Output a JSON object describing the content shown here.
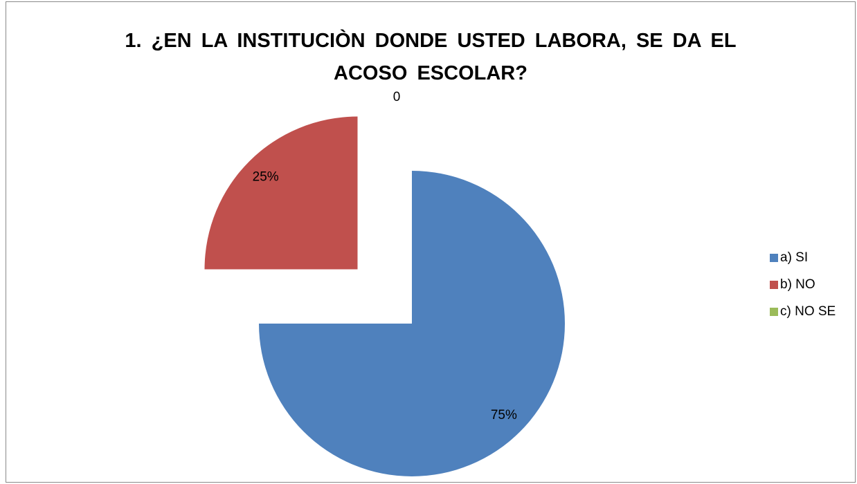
{
  "chart_data": {
    "type": "pie",
    "title": "1. ¿EN LA INSTITUCIÒN DONDE USTED LABORA, SE DA EL ACOSO ESCOLAR?",
    "categories": [
      "a) SI",
      "b) NO",
      "c) NO SE"
    ],
    "values": [
      75,
      25,
      0
    ],
    "value_labels": [
      "75%",
      "25%",
      "0"
    ],
    "colors": [
      "#4f81bd",
      "#c0504d",
      "#9bbb59"
    ],
    "legend": "right"
  }
}
